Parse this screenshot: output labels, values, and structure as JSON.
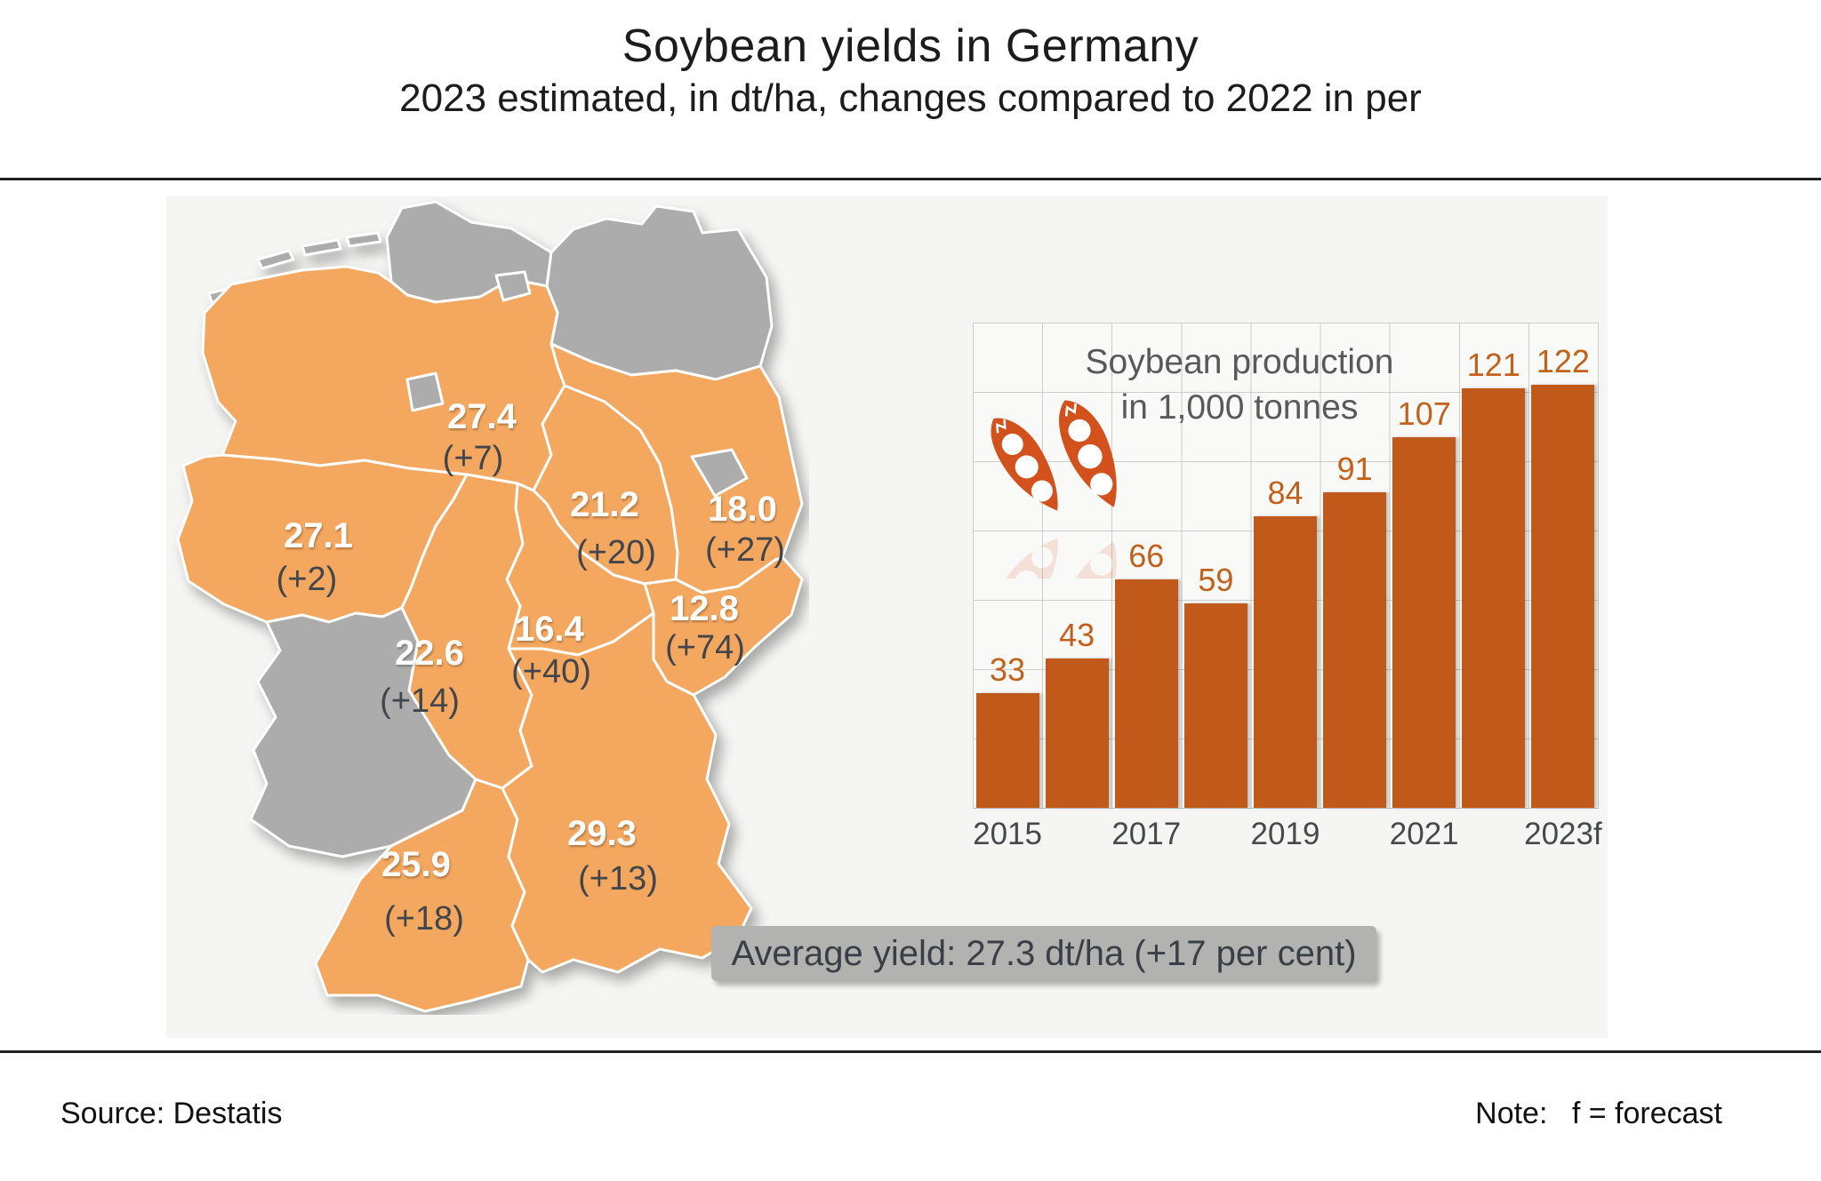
{
  "header": {
    "title": "Soybean yields in Germany",
    "subtitle": "2023 estimated, in dt/ha, changes compared to 2022 in per"
  },
  "map": {
    "orange_color": "#f4a75f",
    "gray_color": "#acacac",
    "regions": [
      {
        "name": "Lower Saxony",
        "value": "27.4",
        "change": "(+7)"
      },
      {
        "name": "North Rhine-Westphalia",
        "value": "27.1",
        "change": "(+2)"
      },
      {
        "name": "Saxony-Anhalt",
        "value": "21.2",
        "change": "(+20)"
      },
      {
        "name": "Brandenburg",
        "value": "18.0",
        "change": "(+27)"
      },
      {
        "name": "Saxony",
        "value": "12.8",
        "change": "(+74)"
      },
      {
        "name": "Thuringia",
        "value": "16.4",
        "change": "(+40)"
      },
      {
        "name": "Hesse",
        "value": "22.6",
        "change": "(+14)"
      },
      {
        "name": "Baden-Wuerttemberg",
        "value": "25.9",
        "change": "(+18)"
      },
      {
        "name": "Bavaria",
        "value": "29.3",
        "change": "(+13)"
      }
    ]
  },
  "average_badge": "Average yield: 27.3 dt/ha (+17 per cent)",
  "chart_data": {
    "type": "bar",
    "title_line1": "Soybean production",
    "title_line2": "in 1,000 tonnes",
    "categories": [
      "2015",
      "2016",
      "2017",
      "2018",
      "2019",
      "2020",
      "2021",
      "2022",
      "2023f"
    ],
    "values": [
      33,
      43,
      66,
      59,
      84,
      91,
      107,
      121,
      122
    ],
    "tick_labels": [
      "2015",
      "",
      "2017",
      "",
      "2019",
      "",
      "2021",
      "",
      "2023f"
    ],
    "xlabel": "",
    "ylabel": "",
    "ylim": [
      0,
      140
    ],
    "grid": true,
    "bar_color": "#c0591a",
    "value_label_color": "#c2611c",
    "legend": false
  },
  "footer": {
    "source": "Source: Destatis",
    "note_label": "Note:",
    "note_text": "f = forecast"
  }
}
